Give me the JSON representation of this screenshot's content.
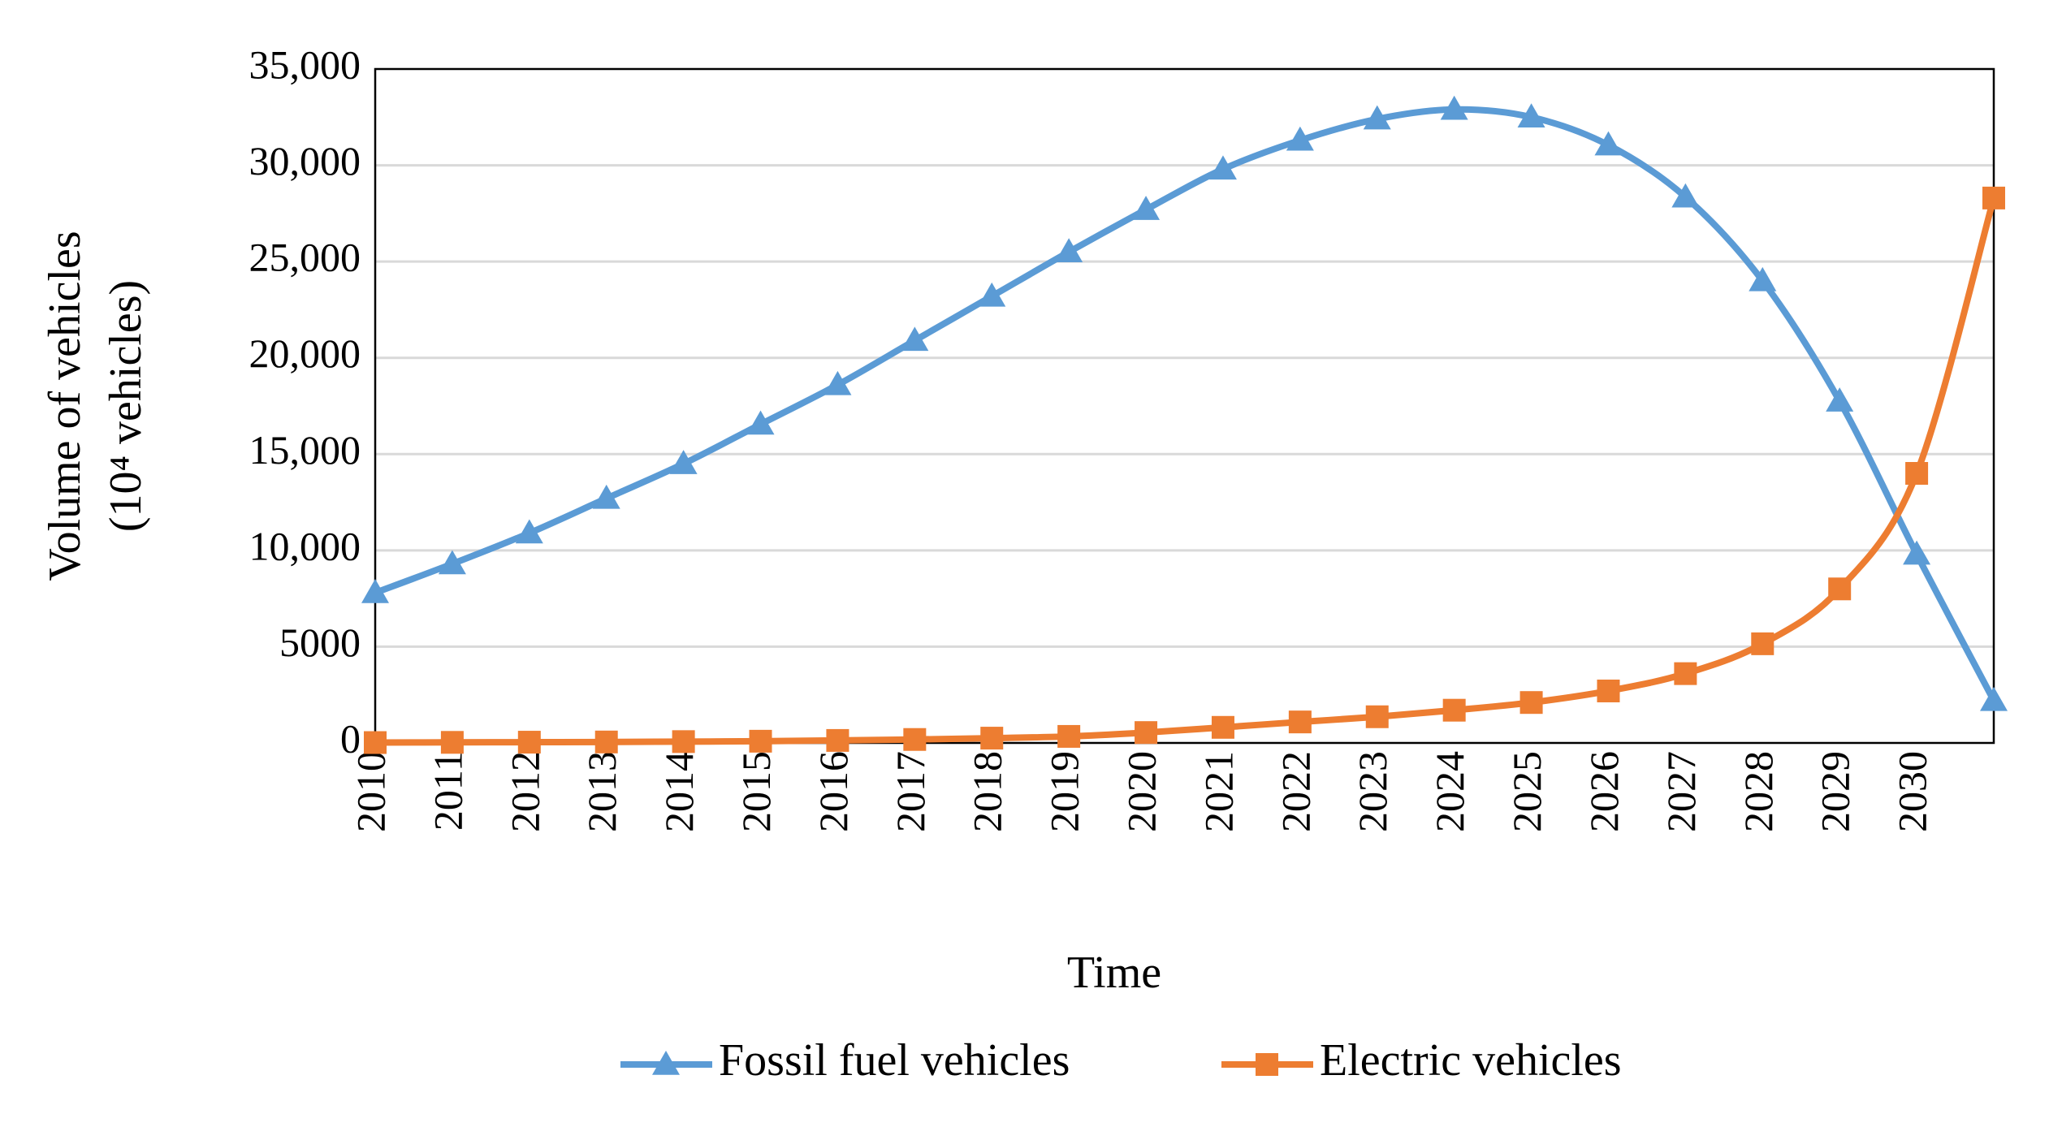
{
  "chart_data": {
    "type": "line",
    "x_label": "Time",
    "y_label": "Volume of vehicles",
    "y_label_unit": "(10⁴ vehicles)",
    "categories": [
      "2010",
      "2011",
      "2012",
      "2013",
      "2014",
      "2015",
      "2016",
      "2017",
      "2018",
      "2019",
      "2020",
      "2021",
      "2022",
      "2023",
      "2024",
      "2025",
      "2026",
      "2027",
      "2028",
      "2029",
      "2030",
      null
    ],
    "series": [
      {
        "name": "Fossil fuel vehicles",
        "color": "#5b9bd5",
        "marker": "triangle",
        "values": [
          7800,
          9300,
          10900,
          12700,
          14500,
          16550,
          18600,
          20900,
          23200,
          25500,
          27700,
          29800,
          31300,
          32400,
          32900,
          32500,
          31050,
          28350,
          24000,
          17750,
          9800,
          2200
        ]
      },
      {
        "name": "Electric vehicles",
        "color": "#ed7d31",
        "marker": "square",
        "values": [
          20,
          30,
          40,
          50,
          70,
          90,
          130,
          180,
          250,
          340,
          540,
          810,
          1090,
          1360,
          1700,
          2100,
          2700,
          3600,
          5150,
          8000,
          14000,
          28300
        ]
      }
    ],
    "ylim": [
      0,
      35000
    ],
    "yticks": [
      0,
      5000,
      {
        "value": 10000,
        "label": "10,000"
      },
      {
        "value": 15000,
        "label": "15,000"
      },
      {
        "value": 20000,
        "label": "20,000"
      },
      {
        "value": 25000,
        "label": "25,000"
      },
      {
        "value": 30000,
        "label": "30,000"
      },
      {
        "value": 35000,
        "label": "35,000"
      }
    ],
    "grid": true,
    "legend": "bottom"
  }
}
